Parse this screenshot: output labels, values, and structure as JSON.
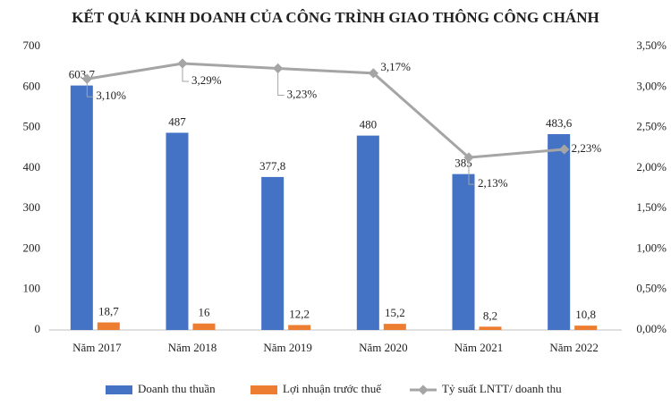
{
  "chart_data": {
    "type": "combo",
    "title": "KẾT QUẢ KINH DOANH CỦA CÔNG TRÌNH GIAO THÔNG CÔNG CHÁNH",
    "categories": [
      "Năm 2017",
      "Năm 2018",
      "Năm 2019",
      "Năm 2020",
      "Năm 2021",
      "Năm 2022"
    ],
    "series": [
      {
        "name": "Doanh thu thuần",
        "type": "bar",
        "color": "#4472c4",
        "values": [
          603.7,
          487,
          377.8,
          480,
          385,
          483.6
        ],
        "value_labels": [
          "603,7",
          "487",
          "377,8",
          "480",
          "385",
          "483,6"
        ]
      },
      {
        "name": "Lợi nhuận trước thuế",
        "type": "bar",
        "color": "#ed7d31",
        "values": [
          18.7,
          16,
          12.2,
          15.2,
          8.2,
          10.8
        ],
        "value_labels": [
          "18,7",
          "16",
          "12,2",
          "15,2",
          "8,2",
          "10,8"
        ]
      },
      {
        "name": "Tỷ suất LNTT/ doanh thu",
        "type": "line",
        "axis": "y2",
        "color": "#a5a5a5",
        "values": [
          3.1,
          3.29,
          3.23,
          3.17,
          2.13,
          2.23
        ],
        "value_labels": [
          "3,10%",
          "3,29%",
          "3,23%",
          "3,17%",
          "2,13%",
          "2,23%"
        ]
      }
    ],
    "ylim": [
      0,
      700
    ],
    "yticks": [
      0,
      100,
      200,
      300,
      400,
      500,
      600,
      700
    ],
    "y2lim": [
      0,
      3.5
    ],
    "y2ticks": [
      {
        "value": 0,
        "label": "0,00%"
      },
      {
        "value": 0.5,
        "label": "0,50%"
      },
      {
        "value": 1,
        "label": "1,00%"
      },
      {
        "value": 1.5,
        "label": "1,50%"
      },
      {
        "value": 2,
        "label": "2,00%"
      },
      {
        "value": 2.5,
        "label": "2,50%"
      },
      {
        "value": 3,
        "label": "3,00%"
      },
      {
        "value": 3.5,
        "label": "3,50%"
      }
    ],
    "legend": "bottom",
    "grid": false
  }
}
